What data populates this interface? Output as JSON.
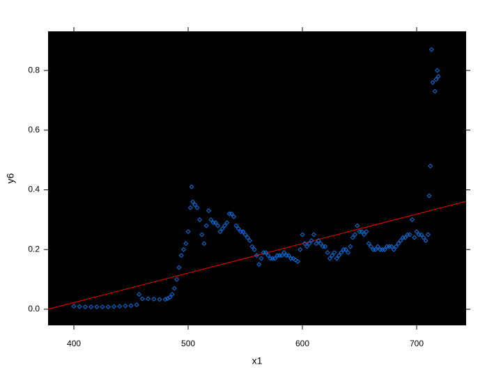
{
  "chart_data": {
    "type": "scatter",
    "xlabel": "x1",
    "ylabel": "y6",
    "xlim": [
      377.4,
      743.3
    ],
    "ylim": [
      -0.054,
      0.931
    ],
    "xticks": [
      400,
      500,
      600,
      700
    ],
    "yticks": [
      {
        "value": 0,
        "label": "0.0"
      },
      0.2,
      0.4,
      0.6,
      0.8
    ],
    "background": "#000000",
    "series": [
      {
        "color": "#0080ff",
        "x": [
          400,
          405,
          410,
          415,
          420,
          425,
          430,
          435,
          440,
          445,
          450,
          455,
          457,
          460,
          465,
          470,
          475,
          480,
          482,
          484,
          486,
          488,
          490,
          492,
          494,
          496,
          498,
          500,
          502,
          503,
          504,
          506,
          508,
          510,
          512,
          514,
          516,
          518,
          520,
          522,
          524,
          526,
          528,
          530,
          532,
          534,
          536,
          538,
          540,
          542,
          544,
          546,
          548,
          550,
          552,
          554,
          556,
          558,
          560,
          562,
          564,
          566,
          568,
          570,
          572,
          574,
          576,
          578,
          580,
          582,
          584,
          586,
          588,
          590,
          592,
          594,
          596,
          598,
          600,
          602,
          604,
          606,
          608,
          610,
          612,
          614,
          616,
          618,
          620,
          622,
          624,
          626,
          628,
          630,
          632,
          634,
          636,
          638,
          640,
          642,
          644,
          646,
          648,
          650,
          652,
          654,
          656,
          658,
          660,
          662,
          664,
          666,
          668,
          670,
          672,
          674,
          676,
          678,
          680,
          682,
          684,
          686,
          688,
          690,
          692,
          694,
          696,
          698,
          700,
          702,
          704,
          706,
          708,
          710,
          711,
          712,
          713,
          714,
          716,
          717,
          718,
          719
        ],
        "y": [
          0.01,
          0.009,
          0.008,
          0.008,
          0.008,
          0.008,
          0.008,
          0.009,
          0.01,
          0.011,
          0.012,
          0.015,
          0.05,
          0.035,
          0.035,
          0.034,
          0.033,
          0.033,
          0.036,
          0.04,
          0.05,
          0.07,
          0.1,
          0.14,
          0.18,
          0.2,
          0.22,
          0.26,
          0.34,
          0.41,
          0.36,
          0.35,
          0.34,
          0.3,
          0.25,
          0.22,
          0.28,
          0.33,
          0.3,
          0.29,
          0.29,
          0.28,
          0.26,
          0.27,
          0.28,
          0.29,
          0.32,
          0.32,
          0.31,
          0.28,
          0.27,
          0.26,
          0.26,
          0.25,
          0.24,
          0.23,
          0.21,
          0.2,
          0.18,
          0.15,
          0.17,
          0.19,
          0.19,
          0.18,
          0.17,
          0.17,
          0.17,
          0.18,
          0.18,
          0.18,
          0.19,
          0.18,
          0.18,
          0.17,
          0.17,
          0.165,
          0.16,
          0.2,
          0.25,
          0.22,
          0.21,
          0.22,
          0.23,
          0.25,
          0.22,
          0.23,
          0.22,
          0.21,
          0.21,
          0.19,
          0.17,
          0.18,
          0.19,
          0.17,
          0.18,
          0.19,
          0.2,
          0.2,
          0.19,
          0.21,
          0.24,
          0.25,
          0.28,
          0.26,
          0.26,
          0.25,
          0.26,
          0.22,
          0.21,
          0.2,
          0.2,
          0.21,
          0.2,
          0.2,
          0.2,
          0.21,
          0.21,
          0.21,
          0.2,
          0.21,
          0.22,
          0.23,
          0.24,
          0.24,
          0.25,
          0.25,
          0.3,
          0.24,
          0.26,
          0.25,
          0.25,
          0.24,
          0.23,
          0.25,
          0.38,
          0.48,
          0.87,
          0.76,
          0.73,
          0.77,
          0.8,
          0.78
        ]
      }
    ],
    "fit_line": {
      "color": "#ff0000",
      "x": [
        377.4,
        743.3
      ],
      "y": [
        0,
        0.3615
      ]
    }
  }
}
